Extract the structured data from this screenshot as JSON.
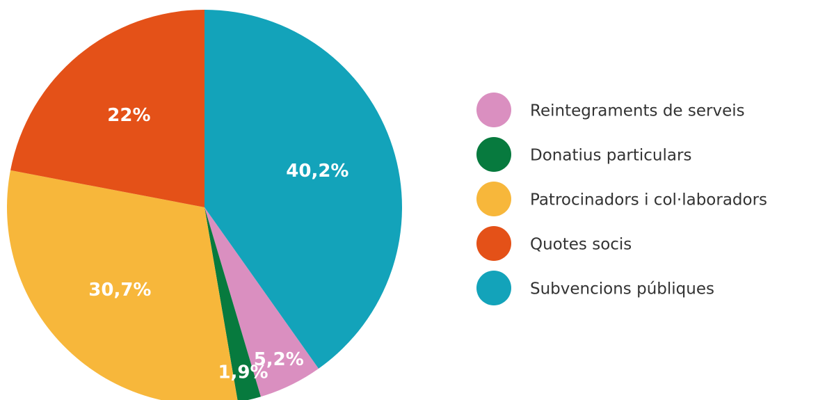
{
  "chart_data": {
    "type": "pie",
    "categories": [
      "Reintegraments de serveis",
      "Donatius particulars",
      "Patrocinadors i col·laboradors",
      "Quotes socis",
      "Subvencions públiques"
    ],
    "values": [
      5.2,
      1.9,
      30.7,
      22,
      40.2
    ],
    "value_labels": [
      "5,2%",
      "1,9%",
      "30,7%",
      "22%",
      "40,2%"
    ],
    "colors": [
      "#da8fc0",
      "#077a3e",
      "#f7b73b",
      "#e45118",
      "#13a3ba"
    ],
    "legend": "right"
  }
}
